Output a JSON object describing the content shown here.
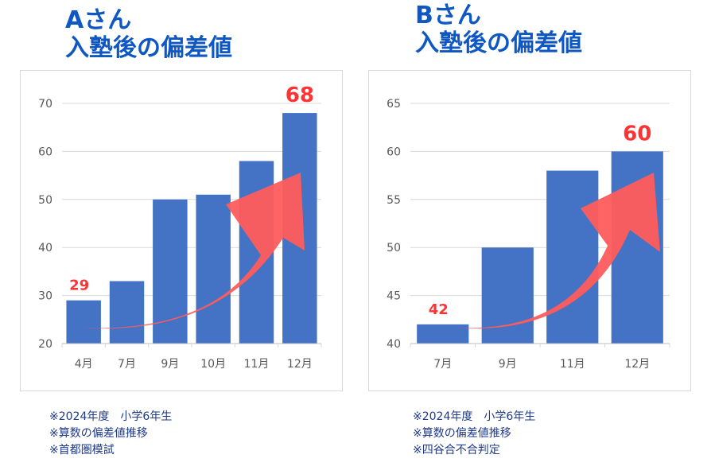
{
  "charts": [
    {
      "title_line1": "Aさん",
      "title_line2": "入塾後の偏差値",
      "notes": [
        "※2024年度　小学6年生",
        "※算数の偏差値推移",
        "※首都圏模試"
      ]
    },
    {
      "title_line1": "Bさん",
      "title_line2": "入塾後の偏差値",
      "notes": [
        "※2024年度　小学6年生",
        "※算数の偏差値推移",
        "※四谷合不合判定"
      ]
    }
  ],
  "colors": {
    "bar": "#4472c4",
    "title": "#0f57c2",
    "highlight": "#ff3333",
    "arrow": "#ff5c5c"
  },
  "chart_data": [
    {
      "type": "bar",
      "categories": [
        "4月",
        "7月",
        "9月",
        "10月",
        "11月",
        "12月"
      ],
      "values": [
        29,
        33,
        50,
        51,
        58,
        68
      ],
      "ylim": [
        20,
        70
      ],
      "yticks": [
        20,
        30,
        40,
        50,
        60,
        70
      ],
      "annotations": [
        {
          "category": "4月",
          "text": "29"
        },
        {
          "category": "12月",
          "text": "68"
        }
      ],
      "grid": true,
      "arrow": "rising"
    },
    {
      "type": "bar",
      "categories": [
        "7月",
        "9月",
        "11月",
        "12月"
      ],
      "values": [
        42,
        50,
        58,
        60
      ],
      "ylim": [
        40,
        65
      ],
      "yticks": [
        40,
        45,
        50,
        55,
        60,
        65
      ],
      "annotations": [
        {
          "category": "7月",
          "text": "42"
        },
        {
          "category": "12月",
          "text": "60"
        }
      ],
      "grid": true,
      "arrow": "rising"
    }
  ]
}
